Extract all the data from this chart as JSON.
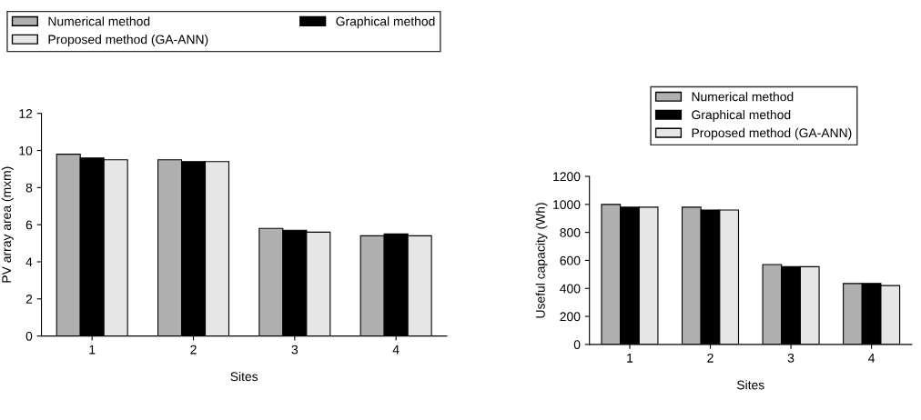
{
  "chart_data": [
    {
      "type": "bar",
      "xlabel": "Sites",
      "ylabel": "PV array area (mxm)",
      "categories": [
        "1",
        "2",
        "3",
        "4"
      ],
      "series": [
        {
          "name": "Numerical method",
          "color": "#b0b0b0",
          "values": [
            9.8,
            9.5,
            5.8,
            5.4
          ]
        },
        {
          "name": "Graphical method",
          "color": "#000000",
          "values": [
            9.6,
            9.4,
            5.7,
            5.5
          ]
        },
        {
          "name": "Proposed method (GA-ANN)",
          "color": "#e6e6e6",
          "values": [
            9.5,
            9.4,
            5.6,
            5.4
          ]
        }
      ],
      "ylim": [
        0,
        12
      ],
      "yticks": [
        0,
        2,
        4,
        6,
        8,
        10,
        12
      ],
      "grid": false,
      "legend": "top"
    },
    {
      "type": "bar",
      "xlabel": "Sites",
      "ylabel": "Useful capacity (Wh)",
      "categories": [
        "1",
        "2",
        "3",
        "4"
      ],
      "series": [
        {
          "name": "Numerical method",
          "color": "#b0b0b0",
          "values": [
            1000,
            980,
            570,
            435
          ]
        },
        {
          "name": "Graphical method",
          "color": "#000000",
          "values": [
            980,
            960,
            555,
            435
          ]
        },
        {
          "name": "Proposed method (GA-ANN)",
          "color": "#e6e6e6",
          "values": [
            980,
            960,
            555,
            420
          ]
        }
      ],
      "ylim": [
        0,
        1200
      ],
      "yticks": [
        0,
        200,
        400,
        600,
        800,
        1000,
        1200
      ],
      "grid": false,
      "legend": "top right"
    }
  ]
}
